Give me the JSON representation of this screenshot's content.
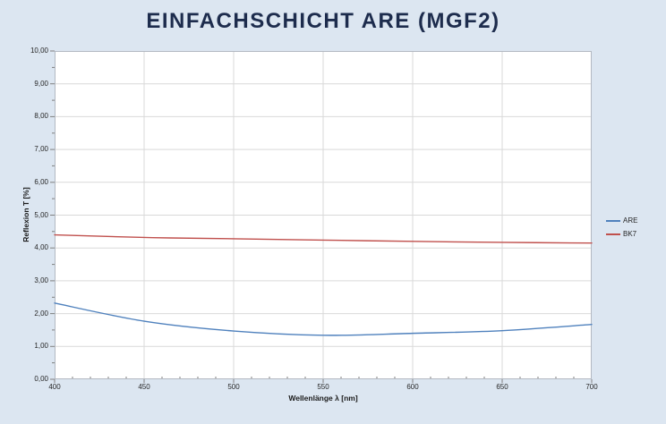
{
  "colors": {
    "background": "#dce6f1",
    "title": "#1d2c4d",
    "plot_bg": "#ffffff",
    "grid": "#d9d9d9",
    "border": "#b3b9c2",
    "tick": "#7f7f7f",
    "are_line": "#4f81bd",
    "bk7_line": "#c0504d"
  },
  "chart_data": {
    "type": "line",
    "title": "EINFACHSCHICHT ARE (MGF2)",
    "xlabel": "Wellenlänge λ [nm]",
    "ylabel": "Reflexion T [%]",
    "xlim": [
      400,
      700
    ],
    "ylim": [
      0,
      10
    ],
    "x_tick_step": 50,
    "x_minor_step": 10,
    "y_tick_step": 1,
    "y_minor_step": 0.5,
    "x_tick_labels": [
      "400",
      "450",
      "500",
      "550",
      "600",
      "650",
      "700"
    ],
    "y_tick_labels": [
      "0,00",
      "1,00",
      "2,00",
      "3,00",
      "4,00",
      "5,00",
      "6,00",
      "7,00",
      "8,00",
      "9,00",
      "10,00"
    ],
    "grid": true,
    "legend_position": "right",
    "x": [
      400,
      450,
      500,
      550,
      600,
      650,
      700
    ],
    "series": [
      {
        "name": "ARE",
        "color": "#4f81bd",
        "values": [
          2.32,
          1.77,
          1.47,
          1.34,
          1.4,
          1.48,
          1.67
        ]
      },
      {
        "name": "BK7",
        "color": "#c0504d",
        "values": [
          4.4,
          4.32,
          4.28,
          4.24,
          4.2,
          4.17,
          4.15
        ]
      }
    ]
  }
}
